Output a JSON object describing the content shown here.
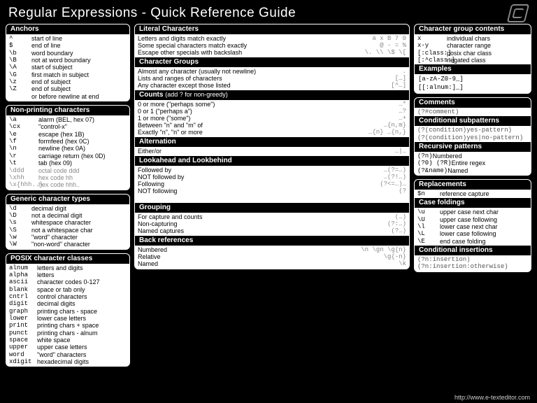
{
  "title": "Regular Expressions - Quick Reference Guide",
  "footer": "http://www.e-texteditor.com",
  "left": {
    "anchors": {
      "title": "Anchors",
      "rows": [
        {
          "k": "^",
          "v": "start of line"
        },
        {
          "k": "$",
          "v": "end of line"
        },
        {
          "k": "\\b",
          "v": "word boundary"
        },
        {
          "k": "\\B",
          "v": "not at word boundary"
        },
        {
          "k": "\\A",
          "v": "start of subject"
        },
        {
          "k": "\\G",
          "v": "first match in subject"
        },
        {
          "k": "\\z",
          "v": "end of subject"
        },
        {
          "k": "\\Z",
          "v": "end of subject"
        },
        {
          "k": "",
          "v": "or before newline at end"
        }
      ]
    },
    "nonprint": {
      "title": "Non-printing characters",
      "rows": [
        {
          "k": "\\a",
          "v": "alarm (BEL, hex 07)"
        },
        {
          "k": "\\cx",
          "v": "\"control-x\""
        },
        {
          "k": "\\e",
          "v": "escape (hex 1B)"
        },
        {
          "k": "\\f",
          "v": "formfeed (hex 0C)"
        },
        {
          "k": "\\n",
          "v": "newline (hex 0A)"
        },
        {
          "k": "\\r",
          "v": "carriage return (hex 0D)"
        },
        {
          "k": "\\t",
          "v": "tab (hex 09)"
        },
        {
          "k": "\\ddd",
          "v": "octal code ddd",
          "grey": true
        },
        {
          "k": "\\xhh",
          "v": "hex code hh",
          "grey": true
        },
        {
          "k": "\\x{hhh..}",
          "v": "hex code hhh..",
          "grey": true
        }
      ]
    },
    "generic": {
      "title": "Generic character types",
      "rows": [
        {
          "k": "\\d",
          "v": "decimal digit"
        },
        {
          "k": "\\D",
          "v": "not a decimal digit"
        },
        {
          "k": "\\s",
          "v": "whitespace character"
        },
        {
          "k": "\\S",
          "v": "not a whitespace char"
        },
        {
          "k": "\\w",
          "v": "\"word\" character"
        },
        {
          "k": "\\W",
          "v": "\"non-word\" character"
        }
      ]
    },
    "posix": {
      "title": "POSIX character classes",
      "rows": [
        {
          "k": "alnum",
          "v": "letters and digits"
        },
        {
          "k": "alpha",
          "v": "letters"
        },
        {
          "k": "ascii",
          "v": "character codes 0-127"
        },
        {
          "k": "blank",
          "v": "space or tab only"
        },
        {
          "k": "cntrl",
          "v": "control characters"
        },
        {
          "k": "digit",
          "v": "decimal digits"
        },
        {
          "k": "graph",
          "v": "printing chars - space"
        },
        {
          "k": "lower",
          "v": "lower case letters"
        },
        {
          "k": "print",
          "v": "printing chars + space"
        },
        {
          "k": "punct",
          "v": "printing chars - alnum"
        },
        {
          "k": "space",
          "v": "white space"
        },
        {
          "k": "upper",
          "v": "upper case letters"
        },
        {
          "k": "word",
          "v": "\"word\" characters"
        },
        {
          "k": "xdigit",
          "v": "hexadecimal digits"
        }
      ]
    }
  },
  "mid": {
    "literal": {
      "title": "Literal Characters",
      "rows": [
        {
          "v": "Letters and digits match exactly",
          "r": "a x B 7 0"
        },
        {
          "v": "Some special characters match exactly",
          "r": "@ - = %"
        },
        {
          "v": "Escape other specials with backslash",
          "r": "\\. \\\\ \\$ \\["
        }
      ]
    },
    "groups": {
      "title": "Character Groups",
      "rows": [
        {
          "v": "Almost any character (usually not newline)",
          "r": "."
        },
        {
          "v": "Lists and ranges of characters",
          "r": "[…]"
        },
        {
          "v": "Any character except those listed",
          "r": "[^…]"
        }
      ]
    },
    "counts": {
      "title": "Counts",
      "sub": "(add ? for non-greedy)",
      "rows": [
        {
          "v": "0 or more (\"perhaps some\")",
          "r": "…*"
        },
        {
          "v": "0 or 1 (\"perhaps a\")",
          "r": "…?"
        },
        {
          "v": "1 or more (\"some\")",
          "r": "…+"
        },
        {
          "v": "Between \"n\" and \"m\" of",
          "r": "…{n,m}"
        },
        {
          "v": "Exactly \"n\", \"n\" or more",
          "r": "…{n} …{n,}"
        }
      ]
    },
    "alt": {
      "title": "Alternation",
      "rows": [
        {
          "v": "Either/or",
          "r": "…|…"
        }
      ]
    },
    "look": {
      "title": "Lookahead and Lookbehind",
      "rows": [
        {
          "v": "Followed by",
          "r": "…(?=…)"
        },
        {
          "v": "NOT followed by",
          "r": "…(?!…)"
        },
        {
          "v": "Following",
          "r": "(?<=…)…"
        },
        {
          "v": "NOT following",
          "r": "(?<!…)…"
        }
      ]
    },
    "grouping": {
      "title": "Grouping",
      "rows": [
        {
          "v": "For capture and counts",
          "r": "(…)"
        },
        {
          "v": "Non-capturing",
          "r": "(?:…)"
        },
        {
          "v": "Named captures",
          "r": "(?<name>…)"
        }
      ]
    },
    "backref": {
      "title": "Back references",
      "rows": [
        {
          "v": "Numbered",
          "r": "\\n \\gn \\g{n}"
        },
        {
          "v": "Relative",
          "r": "\\g{-n}"
        },
        {
          "v": "Named",
          "r": "\\k<name>"
        }
      ]
    }
  },
  "right": {
    "cgroup": {
      "title": "Character group contents",
      "rows": [
        {
          "k": "x",
          "v": "individual chars"
        },
        {
          "k": "x-y",
          "v": "character range"
        },
        {
          "k": "[:class:]",
          "v": "posix char class"
        },
        {
          "k": "[:^class:]",
          "v": "negated class"
        }
      ]
    },
    "examples": {
      "title": "Examples",
      "lines": [
        "[a-zA-Z0-9_]",
        "[[:alnum:]_]"
      ]
    },
    "comments": {
      "title": "Comments",
      "rows": [
        {
          "k": "(?#comment)",
          "v": ""
        }
      ]
    },
    "cond": {
      "title": "Conditional subpatterns",
      "rows": [
        {
          "k": "(?(condition)yes-pattern)",
          "v": ""
        },
        {
          "k": "(?(condition)yes|no-pattern)",
          "v": ""
        }
      ]
    },
    "recur": {
      "title": "Recursive patterns",
      "rows": [
        {
          "k": "(?n)",
          "v": "Numbered"
        },
        {
          "k": "(?0) (?R)",
          "v": "Entire regex"
        },
        {
          "k": "(?&name)",
          "v": "Named"
        }
      ]
    },
    "repl": {
      "title": "Replacements",
      "rows": [
        {
          "k": "$n",
          "v": "reference capture"
        }
      ]
    },
    "case": {
      "title": "Case foldings",
      "rows": [
        {
          "k": "\\u",
          "v": "upper case next char"
        },
        {
          "k": "\\U",
          "v": "upper case following"
        },
        {
          "k": "\\l",
          "v": "lower case next char"
        },
        {
          "k": "\\L",
          "v": "lower case following"
        },
        {
          "k": "\\E",
          "v": "end case folding"
        }
      ]
    },
    "condins": {
      "title": "Conditional insertions",
      "rows": [
        {
          "k": "(?n:insertion)",
          "v": ""
        },
        {
          "k": "(?n:insertion:otherwise)",
          "v": ""
        }
      ]
    }
  }
}
